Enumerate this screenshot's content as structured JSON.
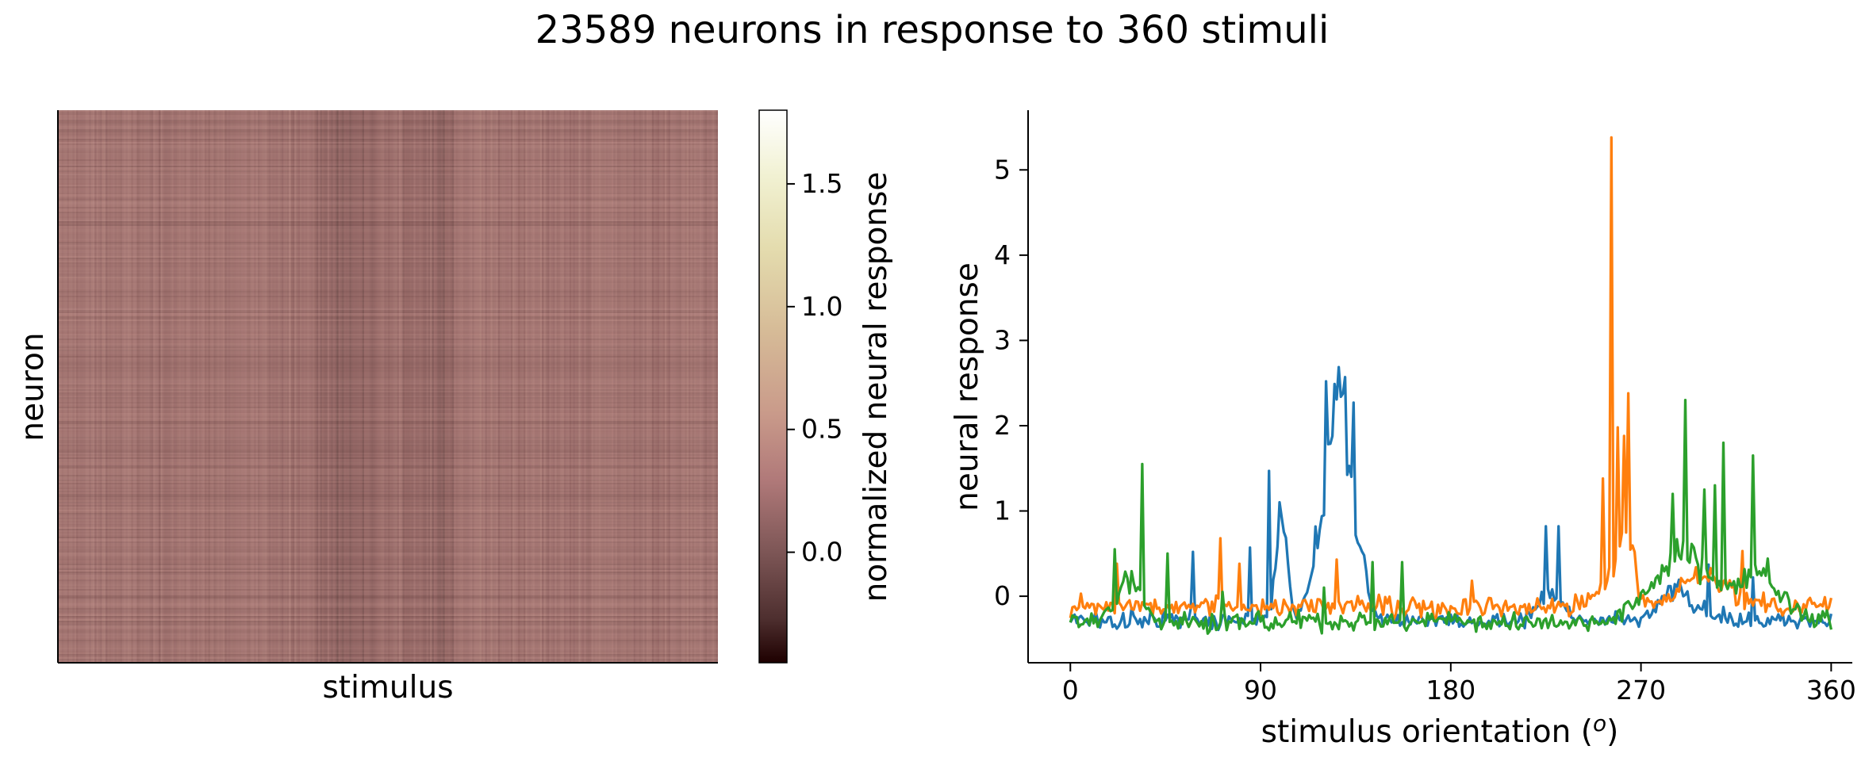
{
  "figure": {
    "title": "23589 neurons in response to 360 stimuli"
  },
  "chart_data": [
    {
      "type": "heatmap",
      "xlabel": "stimulus",
      "ylabel": "neuron",
      "n_rows": 23589,
      "n_cols": 360,
      "colormap": "pink",
      "colorbar": {
        "label": "normalized neural response",
        "range": [
          -0.45,
          1.8
        ],
        "ticks": [
          0.0,
          0.5,
          1.0,
          1.5
        ],
        "tick_labels": [
          "0.0",
          "0.5",
          "1.0",
          "1.5"
        ]
      },
      "typical_value_range": [
        -0.2,
        0.25
      ],
      "darker_stimulus_band": [
        140,
        215
      ]
    },
    {
      "type": "line",
      "xlabel": "stimulus orientation (o)",
      "xlabel_parts": {
        "pre": "stimulus orientation (",
        "sup": "o",
        "post": ")"
      },
      "ylabel": "neural response",
      "xlim": [
        -20,
        370
      ],
      "ylim": [
        -0.78,
        5.7
      ],
      "xticks": [
        0,
        90,
        180,
        270,
        360
      ],
      "xtick_labels": [
        "0",
        "90",
        "180",
        "270",
        "360"
      ],
      "yticks": [
        0,
        1,
        2,
        3,
        4,
        5
      ],
      "ytick_labels": [
        "0",
        "1",
        "2",
        "3",
        "4",
        "5"
      ],
      "grid": false,
      "series": [
        {
          "color": "#1f77b4",
          "baseline": -0.28,
          "noise": 0.07,
          "bumps": [
            [
              100,
              1.3,
              2.5
            ],
            [
              121,
              1.3,
              5.5
            ],
            [
              128,
              2.0,
              4.0
            ],
            [
              136,
              0.8,
              4.0
            ],
            [
              227,
              0.35,
              5.0
            ],
            [
              288,
              0.4,
              8.0
            ]
          ],
          "spikes": [
            [
              58,
              0.8
            ],
            [
              85,
              0.85
            ],
            [
              94,
              1.75
            ],
            [
              121,
              2.8
            ],
            [
              130,
              2.85
            ],
            [
              134,
              2.55
            ],
            [
              225,
              1.1
            ],
            [
              231,
              1.1
            ],
            [
              302,
              0.65
            ],
            [
              323,
              0.5
            ]
          ],
          "range_hint": [
            -0.4,
            2.58
          ]
        },
        {
          "color": "#ff7f0e",
          "baseline": -0.12,
          "noise": 0.09,
          "bumps": [
            [
              258,
              0.5,
              6.0
            ],
            [
              264,
              0.6,
              3.0
            ],
            [
              300,
              0.35,
              12.0
            ]
          ],
          "spikes": [
            [
              5,
              0.15
            ],
            [
              22,
              0.5
            ],
            [
              71,
              0.8
            ],
            [
              80,
              0.5
            ],
            [
              126,
              0.55
            ],
            [
              190,
              0.3
            ],
            [
              252,
              1.5
            ],
            [
              256,
              5.5
            ],
            [
              259,
              2.1
            ],
            [
              262,
              2.0
            ],
            [
              264,
              2.5
            ],
            [
              318,
              0.65
            ],
            [
              360,
              0.1
            ]
          ],
          "range_hint": [
            -0.35,
            5.4
          ]
        },
        {
          "color": "#2ca02c",
          "baseline": -0.3,
          "noise": 0.08,
          "bumps": [
            [
              28,
              0.55,
              6.0
            ],
            [
              290,
              0.85,
              14.0
            ],
            [
              327,
              0.6,
              10.0
            ]
          ],
          "spikes": [
            [
              21,
              0.85
            ],
            [
              34,
              1.85
            ],
            [
              46,
              0.8
            ],
            [
              72,
              0.35
            ],
            [
              120,
              0.4
            ],
            [
              143,
              0.7
            ],
            [
              157,
              0.7
            ],
            [
              285,
              1.5
            ],
            [
              291,
              2.6
            ],
            [
              300,
              1.55
            ],
            [
              305,
              1.6
            ],
            [
              309,
              2.1
            ],
            [
              323,
              1.95
            ]
          ],
          "range_hint": [
            -0.45,
            2.35
          ]
        }
      ]
    }
  ]
}
